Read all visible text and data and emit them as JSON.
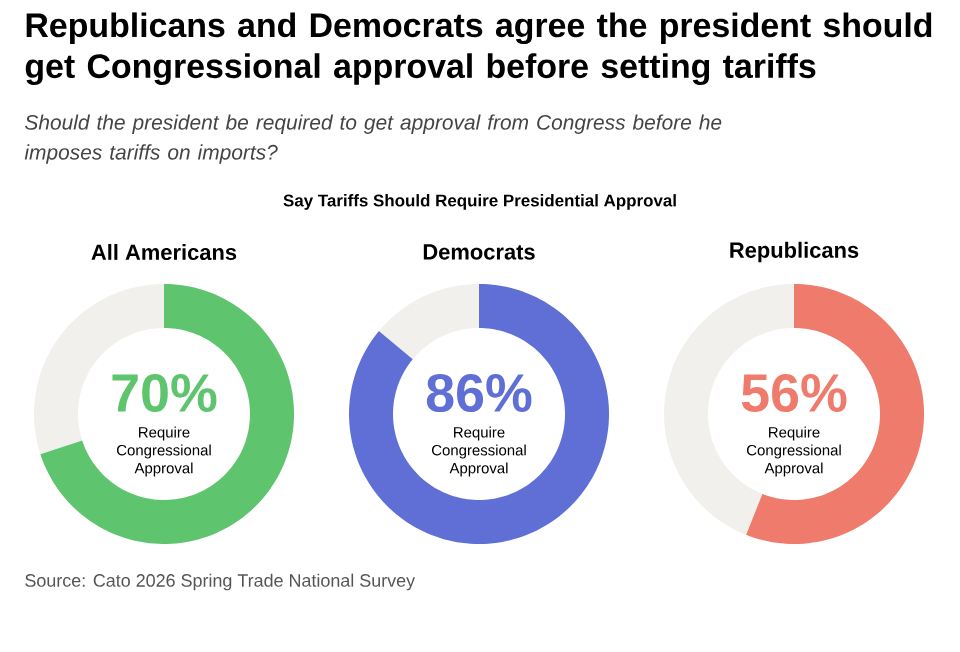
{
  "chart_data": [
    {
      "type": "other",
      "title": "Republicans and Democrats agree the president should get Congressional approval before setting tariffs",
      "subtitle": "Should the president be required to get approval from Congress before he imposes tariffs on imports?",
      "annotations": [
        "Say Tariffs Should Require Presidential Approval",
        "Source: Cato 2026 Spring Trade National Survey"
      ]
    },
    {
      "type": "donut",
      "title": "All Americans",
      "categories": [
        "Require Congressional Approval",
        null
      ],
      "values": [
        70,
        30
      ],
      "colors": [
        "#5ec46e",
        "#f2f0ec"
      ],
      "value_labels": [
        "70%",
        null
      ]
    },
    {
      "type": "donut",
      "title": "Democrats",
      "categories": [
        "Require Congressional Approval",
        null
      ],
      "values": [
        86,
        14
      ],
      "colors": [
        "#5f6fd6",
        "#f2f0ec"
      ],
      "value_labels": [
        "86%",
        null
      ]
    },
    {
      "type": "donut",
      "title": "Republicans",
      "categories": [
        "Require Congressional Approval",
        null
      ],
      "values": [
        56,
        44
      ],
      "colors": [
        "#ef7b6c",
        "#f2f0ec"
      ],
      "value_labels": [
        "56%",
        null
      ]
    }
  ]
}
